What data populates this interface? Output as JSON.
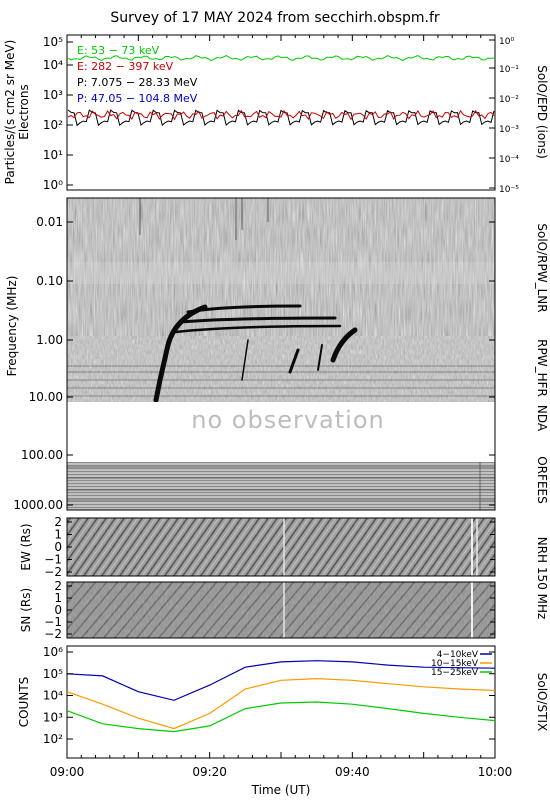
{
  "title": "Survey of 17 MAY 2024 from secchirh.obspm.fr",
  "time_axis": {
    "label": "Time (UT)",
    "ticks": [
      "09:00",
      "09:20",
      "09:40",
      "10:00"
    ]
  },
  "panels": {
    "epd": {
      "side_label": "SolO/EPD (ions)",
      "ylabel_left": "Particles/(s cm2 sr MeV)",
      "ylabel_left2": "Electrons",
      "left_ticks": [
        "10⁰",
        "10¹",
        "10²",
        "10³",
        "10⁴",
        "10⁵"
      ],
      "right_ticks": [
        "10⁻⁵",
        "10⁻⁴",
        "10⁻³",
        "10⁻²",
        "10⁻¹",
        "10⁰"
      ],
      "legend": [
        {
          "label": "E: 53 − 73 keV",
          "color": "#00cc00"
        },
        {
          "label": "E: 282 − 397 keV",
          "color": "#cc0000"
        },
        {
          "label": "P: 7.075 − 28.33 MeV",
          "color": "#000000"
        },
        {
          "label": "P: 47.05 − 104.8 MeV",
          "color": "#0000cc"
        }
      ]
    },
    "lnr": {
      "side_label": "SolO/RPW_LNR"
    },
    "hfr": {
      "side_label": "RPW_HFR"
    },
    "nda": {
      "side_label": "NDA",
      "no_obs_text": "no observation"
    },
    "orfees": {
      "side_label": "ORFEES"
    },
    "frequency": {
      "ylabel": "Frequency (MHz)",
      "ticks": [
        "0.01",
        "0.10",
        "1.00",
        "10.00",
        "100.00",
        "1000.00"
      ]
    },
    "nrh": {
      "side_label": "NRH 150 MHz",
      "ew_label": "EW (Rs)",
      "sn_label": "SN (Rs)",
      "ticks": [
        "2",
        "1",
        "0",
        "−1",
        "−2"
      ]
    },
    "stix": {
      "side_label": "SolO/STIX",
      "ylabel": "COUNTS",
      "ticks": [
        "10²",
        "10³",
        "10⁴",
        "10⁵",
        "10⁶"
      ],
      "legend": [
        {
          "label": "4−10keV",
          "color": "#0000b4"
        },
        {
          "label": "10−15keV",
          "color": "#ff9900"
        },
        {
          "label": "15−25keV",
          "color": "#00cc00"
        }
      ]
    }
  },
  "chart_data": {
    "type": "line",
    "x": [
      "09:00",
      "09:05",
      "09:10",
      "09:15",
      "09:20",
      "09:25",
      "09:30",
      "09:35",
      "09:40",
      "09:45",
      "09:50",
      "09:55",
      "10:00"
    ],
    "xlabel": "Time (UT)",
    "ylabel": "COUNTS",
    "yscale": "log",
    "ylim": [
      100,
      1000000
    ],
    "series": [
      {
        "name": "4−10keV",
        "values": [
          100000,
          80000,
          15000,
          6000,
          30000,
          200000,
          350000,
          400000,
          350000,
          250000,
          200000,
          190000,
          180000
        ]
      },
      {
        "name": "10−15keV",
        "values": [
          15000,
          4000,
          900,
          300,
          1500,
          20000,
          50000,
          60000,
          50000,
          35000,
          25000,
          20000,
          17000
        ]
      },
      {
        "name": "15−25keV",
        "values": [
          2000,
          500,
          300,
          220,
          400,
          2500,
          4500,
          5000,
          4000,
          2500,
          1500,
          1000,
          700
        ]
      }
    ],
    "grid": false
  }
}
